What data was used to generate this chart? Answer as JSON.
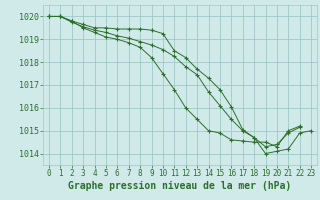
{
  "background_color": "#d0eaea",
  "grid_color": "#a0c8c8",
  "line_color": "#2d6e2d",
  "marker_color": "#2d6e2d",
  "title": "Graphe pression niveau de la mer (hPa)",
  "ylim": [
    1013.5,
    1020.5
  ],
  "xlim": [
    -0.5,
    23.5
  ],
  "yticks": [
    1014,
    1015,
    1016,
    1017,
    1018,
    1019,
    1020
  ],
  "xticks": [
    0,
    1,
    2,
    3,
    4,
    5,
    6,
    7,
    8,
    9,
    10,
    11,
    12,
    13,
    14,
    15,
    16,
    17,
    18,
    19,
    20,
    21,
    22,
    23
  ],
  "series1": [
    1020.0,
    1020.0,
    1019.8,
    1019.65,
    1019.5,
    1019.5,
    1019.45,
    1019.45,
    1019.45,
    1019.4,
    1019.25,
    1018.5,
    1018.2,
    1017.7,
    1017.3,
    1016.8,
    1016.05,
    1015.05,
    1014.7,
    1014.0,
    1014.1,
    1014.2,
    1014.9,
    1015.0
  ],
  "series2": [
    1020.0,
    1020.0,
    1019.8,
    1019.5,
    1019.3,
    1019.1,
    1019.0,
    1018.85,
    1018.65,
    1018.2,
    1017.5,
    1016.8,
    1016.0,
    1015.5,
    1015.0,
    1014.9,
    1014.6,
    1014.55,
    1014.5,
    1014.5,
    1014.3,
    1015.0,
    1015.2,
    null
  ],
  "series3": [
    1020.0,
    1020.0,
    1019.75,
    1019.55,
    1019.4,
    1019.3,
    1019.15,
    1019.05,
    1018.9,
    1018.75,
    1018.55,
    1018.25,
    1017.8,
    1017.45,
    1016.7,
    1016.1,
    1015.5,
    1015.0,
    1014.7,
    1014.3,
    1014.4,
    1014.9,
    1015.15,
    null
  ],
  "title_fontsize": 7.0,
  "tick_fontsize": 5.5,
  "ytick_fontsize": 6.0
}
